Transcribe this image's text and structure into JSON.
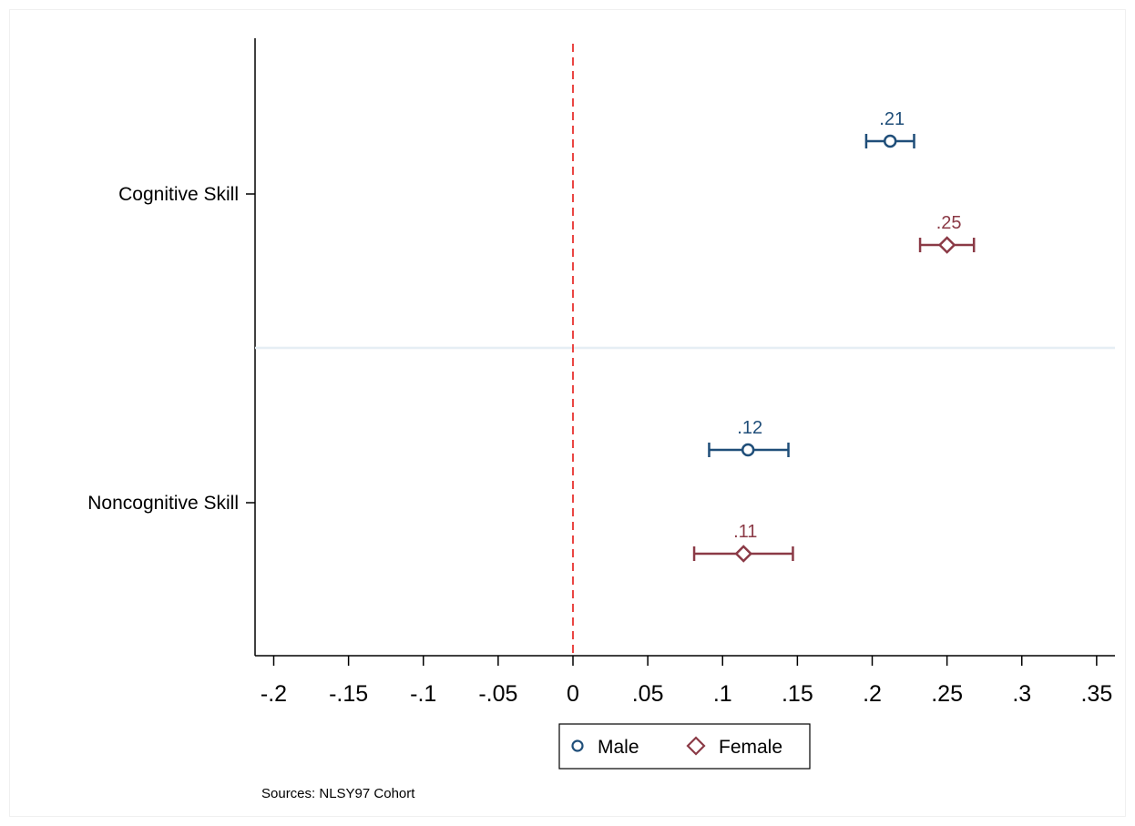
{
  "chart_data": {
    "type": "scatter",
    "subtype": "coefficient-plot-with-error-bars",
    "categories": [
      "Cognitive Skill",
      "Noncognitive Skill"
    ],
    "series": [
      {
        "name": "Male",
        "marker": "circle",
        "color": "#1f4e79",
        "points": [
          {
            "category": "Cognitive Skill",
            "value": 0.212,
            "ci": [
              0.196,
              0.228
            ],
            "label": ".21"
          },
          {
            "category": "Noncognitive Skill",
            "value": 0.117,
            "ci": [
              0.091,
              0.144
            ],
            "label": ".12"
          }
        ]
      },
      {
        "name": "Female",
        "marker": "diamond",
        "color": "#8b3a46",
        "points": [
          {
            "category": "Cognitive Skill",
            "value": 0.25,
            "ci": [
              0.232,
              0.268
            ],
            "label": ".25"
          },
          {
            "category": "Noncognitive Skill",
            "value": 0.114,
            "ci": [
              0.081,
              0.147
            ],
            "label": ".11"
          }
        ]
      }
    ],
    "xlim": [
      -0.213,
      0.36
    ],
    "xticks": [
      -0.2,
      -0.15,
      -0.1,
      -0.05,
      0,
      0.05,
      0.1,
      0.15,
      0.2,
      0.25,
      0.3,
      0.35
    ],
    "xtick_labels": [
      "-.2",
      "-.15",
      "-.1",
      "-.05",
      "0",
      ".05",
      ".1",
      ".15",
      ".2",
      ".25",
      ".3",
      ".35"
    ],
    "reference_line": {
      "x": 0,
      "style": "dashed",
      "color": "#e8322f"
    },
    "legend": {
      "position": "bottom-center",
      "entries": [
        "Male",
        "Female"
      ]
    },
    "note": "Sources: NLSY97 Cohort",
    "grid": false
  }
}
